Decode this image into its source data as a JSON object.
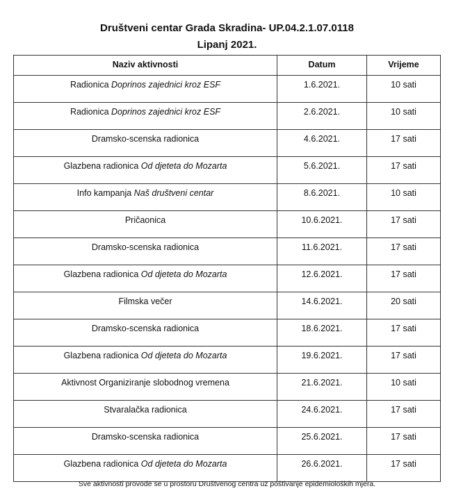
{
  "title": "Društveni centar Grada Skradina- UP.04.2.1.07.0118",
  "subtitle": "Lipanj 2021.",
  "table": {
    "headers": [
      "Naziv aktivnosti",
      "Datum",
      "Vrijeme"
    ],
    "rows": [
      {
        "name": "Radionica ",
        "name_italic": "Doprinos zajednici kroz ESF",
        "date": "1.6.2021.",
        "time": "10 sati"
      },
      {
        "name": "Radionica ",
        "name_italic": "Doprinos zajednici kroz ESF",
        "date": "2.6.2021.",
        "time": "10 sati"
      },
      {
        "name": "Dramsko-scenska radionica",
        "name_italic": "",
        "date": "4.6.2021.",
        "time": "17 sati"
      },
      {
        "name": "Glazbena radionica ",
        "name_italic": "Od djeteta do Mozarta",
        "date": "5.6.2021.",
        "time": "17 sati"
      },
      {
        "name": "Info kampanja ",
        "name_italic": "Naš društveni centar",
        "date": "8.6.2021.",
        "time": "10 sati"
      },
      {
        "name": "Pričaonica",
        "name_italic": "",
        "date": "10.6.2021.",
        "time": "17 sati"
      },
      {
        "name": "Dramsko-scenska radionica",
        "name_italic": "",
        "date": "11.6.2021.",
        "time": "17 sati"
      },
      {
        "name": "Glazbena radionica ",
        "name_italic": "Od djeteta do Mozarta",
        "date": "12.6.2021.",
        "time": "17 sati"
      },
      {
        "name": "Filmska večer",
        "name_italic": "",
        "date": "14.6.2021.",
        "time": "20 sati"
      },
      {
        "name": "Dramsko-scenska radionica",
        "name_italic": "",
        "date": "18.6.2021.",
        "time": "17 sati"
      },
      {
        "name": "Glazbena radionica ",
        "name_italic": "Od djeteta do Mozarta",
        "date": "19.6.2021.",
        "time": "17 sati"
      },
      {
        "name": "Aktivnost Organiziranje slobodnog vremena",
        "name_italic": "",
        "date": "21.6.2021.",
        "time": "10 sati"
      },
      {
        "name": "Stvaralačka radionica",
        "name_italic": "",
        "date": "24.6.2021.",
        "time": "17 sati"
      },
      {
        "name": "Dramsko-scenska radionica",
        "name_italic": "",
        "date": "25.6.2021.",
        "time": "17 sati"
      },
      {
        "name": "Glazbena radionica ",
        "name_italic": "Od djeteta do Mozarta",
        "date": "26.6.2021.",
        "time": "17 sati"
      }
    ]
  },
  "footnote": "Sve aktivnosti provode se u prostoru Društvenog centra uz poštivanje epidemioloških mjera."
}
